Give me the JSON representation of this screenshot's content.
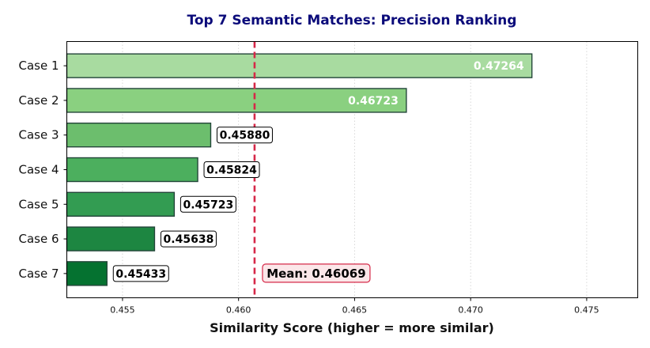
{
  "chart_data": {
    "type": "bar",
    "orientation": "horizontal",
    "title": "Top 7 Semantic Matches: Precision Ranking",
    "xlabel": "Similarity Score (higher = more similar)",
    "ylabel": "",
    "categories": [
      "Case 1",
      "Case 2",
      "Case 3",
      "Case 4",
      "Case 5",
      "Case 6",
      "Case 7"
    ],
    "values": [
      0.47264,
      0.46723,
      0.4588,
      0.45824,
      0.45723,
      0.45638,
      0.45433
    ],
    "value_labels": [
      "0.47264",
      "0.46723",
      "0.45880",
      "0.45824",
      "0.45723",
      "0.45638",
      "0.45433"
    ],
    "bar_colors": [
      "#a8dba0",
      "#8ad080",
      "#6cbe6d",
      "#4caf5e",
      "#339c52",
      "#1d8641",
      "#057230"
    ],
    "xlim": [
      0.4526,
      0.4772
    ],
    "xticks": [
      0.455,
      0.46,
      0.465,
      0.47,
      0.475
    ],
    "xtick_labels": [
      "0.455",
      "0.460",
      "0.465",
      "0.470",
      "0.475"
    ],
    "grid": "x-dotted",
    "mean": {
      "value": 0.46069,
      "label": "Mean: 0.46069",
      "color": "#d62848"
    }
  }
}
